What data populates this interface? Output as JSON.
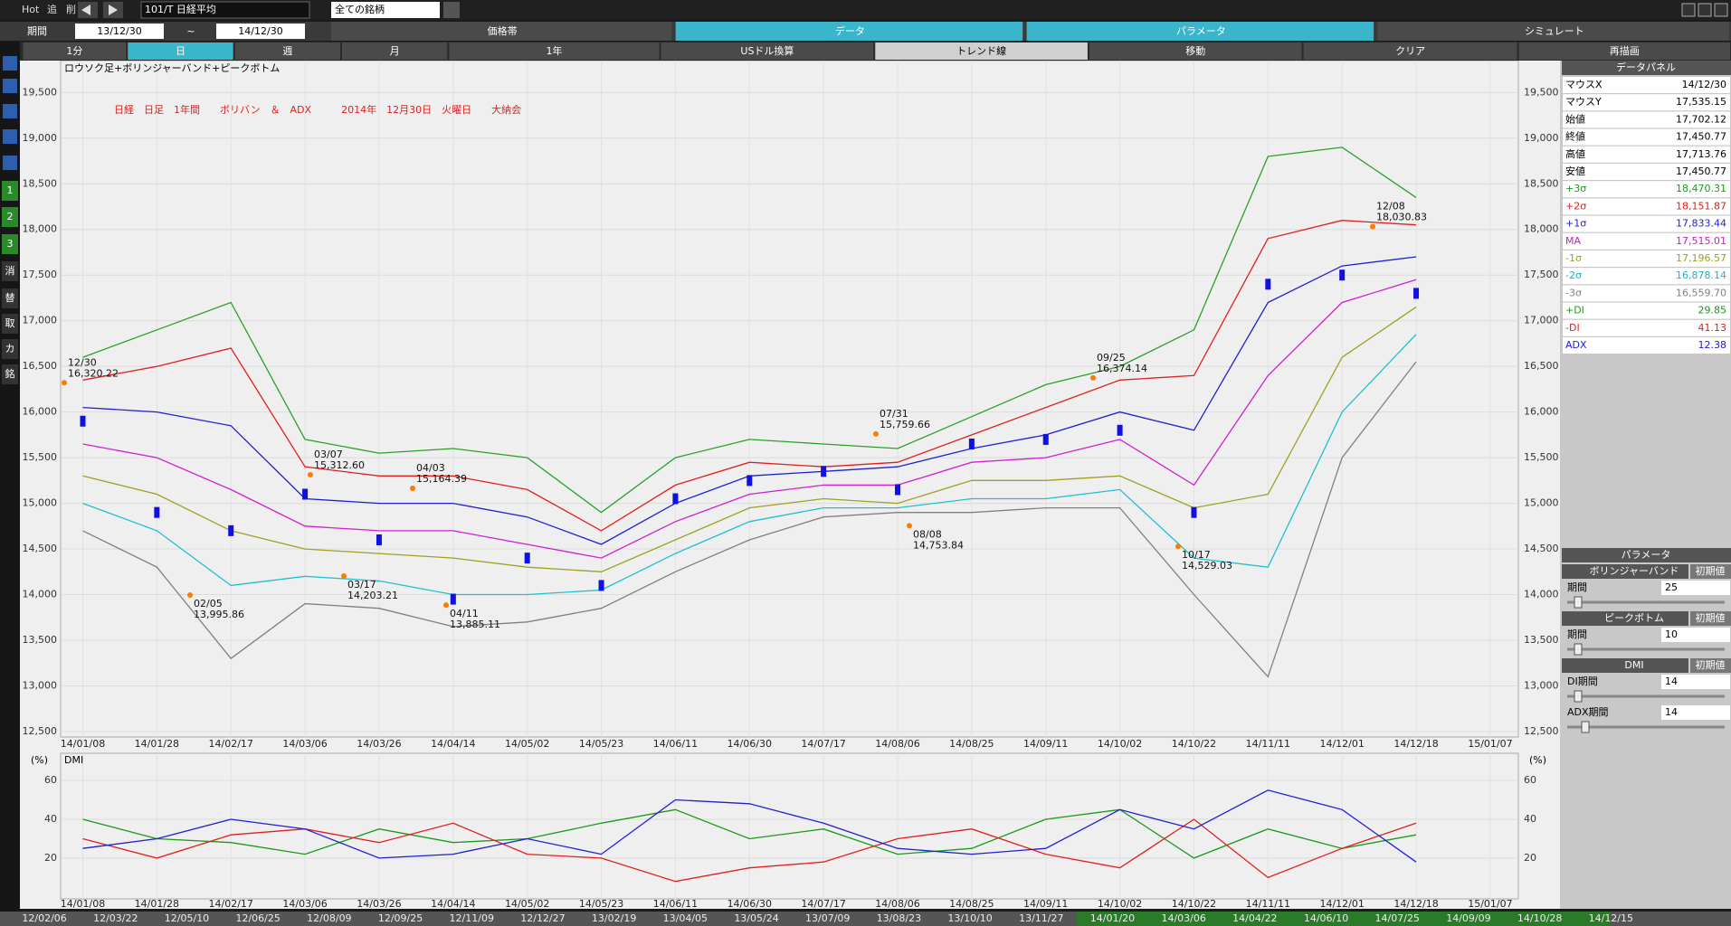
{
  "toolbar": {
    "hot": "Hot",
    "add": "追",
    "del": "削",
    "symbol": "101/T 日経平均",
    "universe": "全ての銘柄",
    "period_label": "期間",
    "from": "13/12/30",
    "tilde": "~",
    "to": "14/12/30",
    "tabs": [
      "価格帯",
      "データ",
      "パラメータ",
      "シミュレート"
    ],
    "buttons": [
      "1分",
      "日",
      "週",
      "月",
      "1年",
      "USドル換算",
      "トレンド線",
      "移動",
      "クリア",
      "再描画"
    ],
    "side": [
      "1",
      "2",
      "3",
      "消",
      "替",
      "取",
      "カ",
      "銘"
    ]
  },
  "panel": {
    "title": "データパネル",
    "rows": [
      [
        "マウスX",
        "14/12/30"
      ],
      [
        "マウスY",
        "17,535.15"
      ],
      [
        "始値",
        "17,702.12"
      ],
      [
        "終値",
        "17,450.77"
      ],
      [
        "高値",
        "17,713.76"
      ],
      [
        "安値",
        "17,450.77"
      ],
      [
        "+3σ",
        "18,470.31"
      ],
      [
        "+2σ",
        "18,151.87"
      ],
      [
        "+1σ",
        "17,833.44"
      ],
      [
        "MA",
        "17,515.01"
      ],
      [
        "-1σ",
        "17,196.57"
      ],
      [
        "-2σ",
        "16,878.14"
      ],
      [
        "-3σ",
        "16,559.70"
      ],
      [
        "+DI",
        "29.85"
      ],
      [
        "-DI",
        "41.13"
      ],
      [
        "ADX",
        "12.38"
      ]
    ],
    "row_colors": [
      "#000",
      "#000",
      "#000",
      "#000",
      "#000",
      "#000",
      "#1a9a1a",
      "#e02020",
      "#2020d0",
      "#c020c0",
      "#a0a020",
      "#20b0c0",
      "#808080",
      "#1a9a1a",
      "#e02020",
      "#2020d0"
    ]
  },
  "parameters": {
    "title": "パラメータ",
    "default": "初期値",
    "groups": [
      {
        "name": "ボリンジャーバンド",
        "fields": [
          [
            "期間",
            "25"
          ]
        ]
      },
      {
        "name": "ピークボトム",
        "fields": [
          [
            "期間",
            "10"
          ]
        ]
      },
      {
        "name": "DMI",
        "fields": [
          [
            "DI期間",
            "14"
          ],
          [
            "ADX期間",
            "14"
          ]
        ]
      }
    ]
  },
  "chart_data": [
    {
      "type": "line",
      "caption": "ロウソク足+ボリンジャーバンド+ピークボトム",
      "title": "日経　日足　1年間　　ボリバン　＆　ADX　　　2014年　12月30日　火曜日　　大納会",
      "categories": [
        "14/01/08",
        "14/01/28",
        "14/02/17",
        "14/03/06",
        "14/03/26",
        "14/04/14",
        "14/05/02",
        "14/05/23",
        "14/06/11",
        "14/06/30",
        "14/07/17",
        "14/08/06",
        "14/08/25",
        "14/09/11",
        "14/10/02",
        "14/10/22",
        "14/11/11",
        "14/12/01",
        "14/12/18",
        "15/01/07"
      ],
      "ylim": [
        12440,
        19850
      ],
      "yticks": [
        {
          "value": 12500,
          "label": "12,500"
        },
        {
          "value": 13000,
          "label": "13,000"
        },
        {
          "value": 13500,
          "label": "13,500"
        },
        {
          "value": 14000,
          "label": "14,000"
        },
        {
          "value": 14500,
          "label": "14,500"
        },
        {
          "value": 15000,
          "label": "15,000"
        },
        {
          "value": 15500,
          "label": "15,500"
        },
        {
          "value": 16000,
          "label": "16,000"
        },
        {
          "value": 16500,
          "label": "16,500"
        },
        {
          "value": 17000,
          "label": "17,000"
        },
        {
          "value": 17500,
          "label": "17,500"
        },
        {
          "value": 18000,
          "label": "18,000"
        },
        {
          "value": 18500,
          "label": "18,500"
        },
        {
          "value": 19000,
          "label": "19,000"
        },
        {
          "value": 19500,
          "label": "19,500"
        }
      ],
      "series": [
        {
          "name": "+3σ",
          "color": "#2aa02a",
          "values": [
            16600,
            16900,
            17200,
            15700,
            15550,
            15600,
            15500,
            14900,
            15500,
            15700,
            15650,
            15600,
            15950,
            16300,
            16500,
            16900,
            18800,
            18900,
            18350,
            null
          ]
        },
        {
          "name": "+2σ",
          "color": "#e02020",
          "values": [
            16350,
            16500,
            16700,
            15400,
            15300,
            15300,
            15150,
            14700,
            15200,
            15450,
            15400,
            15450,
            15750,
            16050,
            16350,
            16400,
            17900,
            18100,
            18050,
            null
          ]
        },
        {
          "name": "+1σ",
          "color": "#2020d0",
          "values": [
            16050,
            16000,
            15850,
            15050,
            15000,
            15000,
            14850,
            14550,
            15000,
            15300,
            15350,
            15400,
            15600,
            15750,
            16000,
            15800,
            17200,
            17600,
            17700,
            null
          ]
        },
        {
          "name": "MA",
          "color": "#d020d0",
          "values": [
            15650,
            15500,
            15150,
            14750,
            14700,
            14700,
            14550,
            14400,
            14800,
            15100,
            15200,
            15200,
            15450,
            15500,
            15700,
            15200,
            16400,
            17200,
            17450,
            null
          ]
        },
        {
          "name": "-1σ",
          "color": "#a0a020",
          "values": [
            15300,
            15100,
            14700,
            14500,
            14450,
            14400,
            14300,
            14250,
            14600,
            14950,
            15050,
            15000,
            15250,
            15250,
            15300,
            14950,
            15100,
            16600,
            17150,
            null
          ]
        },
        {
          "name": "-2σ",
          "color": "#20c0d0",
          "values": [
            15000,
            14700,
            14100,
            14200,
            14150,
            14000,
            14000,
            14050,
            14450,
            14800,
            14950,
            14950,
            15050,
            15050,
            15150,
            14400,
            14300,
            16000,
            16850,
            null
          ]
        },
        {
          "name": "-3σ",
          "color": "#808080",
          "values": [
            14700,
            14300,
            13300,
            13900,
            13850,
            13650,
            13700,
            13850,
            14250,
            14600,
            14850,
            14900,
            14900,
            14950,
            14950,
            14000,
            13100,
            15500,
            16550,
            null
          ]
        },
        {
          "name": "終値",
          "color": "#1010e0",
          "values": [
            15900,
            14900,
            14700,
            15100,
            14600,
            13950,
            14400,
            14100,
            15050,
            15250,
            15350,
            15150,
            15650,
            15700,
            15800,
            14900,
            17400,
            17500,
            17300,
            null
          ]
        }
      ],
      "annotations": [
        {
          "date": "12/30",
          "label": "16,320.22",
          "value": 16320.22
        },
        {
          "date": "02/05",
          "label": "13,995.86",
          "value": 13995.86
        },
        {
          "date": "03/07",
          "label": "15,312.60",
          "value": 15312.6
        },
        {
          "date": "03/17",
          "label": "14,203.21",
          "value": 14203.21
        },
        {
          "date": "04/03",
          "label": "15,164.39",
          "value": 15164.39
        },
        {
          "date": "04/11",
          "label": "13,885.11",
          "value": 13885.11
        },
        {
          "date": "07/31",
          "label": "15,759.66",
          "value": 15759.66
        },
        {
          "date": "08/08",
          "label": "14,753.84",
          "value": 14753.84
        },
        {
          "date": "09/25",
          "label": "16,374.14",
          "value": 16374.14
        },
        {
          "date": "10/17",
          "label": "14,529.03",
          "value": 14529.03
        },
        {
          "date": "12/08",
          "label": "18,030.83",
          "value": 18030.83
        }
      ]
    },
    {
      "type": "line",
      "title": "DMI",
      "unit": "(%)",
      "categories": [
        "14/01/08",
        "14/01/28",
        "14/02/17",
        "14/03/06",
        "14/03/26",
        "14/04/14",
        "14/05/02",
        "14/05/23",
        "14/06/11",
        "14/06/30",
        "14/07/17",
        "14/08/06",
        "14/08/25",
        "14/09/11",
        "14/10/02",
        "14/10/22",
        "14/11/11",
        "14/12/01",
        "14/12/18",
        "15/01/07"
      ],
      "ylim": [
        -1,
        74
      ],
      "yticks": [
        20,
        40,
        60
      ],
      "series": [
        {
          "name": "+DI",
          "color": "#1a9a1a",
          "values": [
            40,
            30,
            28,
            22,
            35,
            28,
            30,
            38,
            45,
            30,
            35,
            22,
            25,
            40,
            45,
            20,
            35,
            25,
            32,
            null
          ]
        },
        {
          "name": "-DI",
          "color": "#e02020",
          "values": [
            30,
            20,
            32,
            35,
            28,
            38,
            22,
            20,
            8,
            15,
            18,
            30,
            35,
            22,
            15,
            40,
            10,
            25,
            38,
            null
          ]
        },
        {
          "name": "ADX",
          "color": "#2020d0",
          "values": [
            25,
            30,
            40,
            35,
            20,
            22,
            30,
            22,
            50,
            48,
            38,
            25,
            22,
            25,
            45,
            35,
            55,
            45,
            18,
            null
          ]
        }
      ]
    }
  ],
  "navigator": {
    "dates": [
      "12/02/06",
      "12/03/22",
      "12/05/10",
      "12/06/25",
      "12/08/09",
      "12/09/25",
      "12/11/09",
      "12/12/27",
      "13/02/19",
      "13/04/05",
      "13/05/24",
      "13/07/09",
      "13/08/23",
      "13/10/10",
      "13/11/27",
      "14/01/20",
      "14/03/06",
      "14/04/22",
      "14/06/10",
      "14/07/25",
      "14/09/09",
      "14/10/28",
      "14/12/15"
    ]
  }
}
